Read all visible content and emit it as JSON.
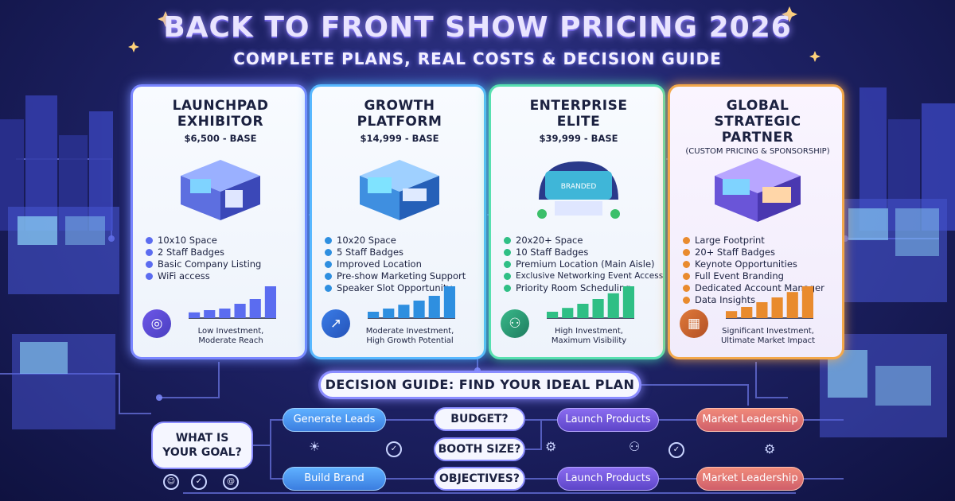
{
  "header": {
    "title": "BACK TO FRONT SHOW PRICING 2026",
    "subtitle": "COMPLETE PLANS, REAL COSTS & DECISION GUIDE"
  },
  "plans": [
    {
      "title_line1": "LAUNCHPAD",
      "title_line2": "EXHIBITOR",
      "price": "$6,500 - BASE",
      "note": "",
      "features": [
        "10x10 Space",
        "2 Staff Badges",
        "Basic Company Listing",
        "WiFi access"
      ],
      "icon": "target-icon",
      "reach_line1": "Low Investment,",
      "reach_line2": "Moderate Reach",
      "bar_levels": [
        0.18,
        0.25,
        0.3,
        0.45,
        0.6,
        1.0
      ],
      "accent": "#5b6cf0"
    },
    {
      "title_line1": "GROWTH",
      "title_line2": "PLATFORM",
      "price": "$14,999 - BASE",
      "note": "",
      "features": [
        "10x20 Space",
        "5 Staff Badges",
        "Improved Location",
        "Pre-show Marketing Support",
        "Speaker Slot Opportunity"
      ],
      "icon": "growth-chart-icon",
      "reach_line1": "Moderate Investment,",
      "reach_line2": "High Growth Potential",
      "bar_levels": [
        0.2,
        0.3,
        0.42,
        0.55,
        0.7,
        1.0
      ],
      "accent": "#2e8fe0"
    },
    {
      "title_line1": "ENTERPRISE",
      "title_line2": "ELITE",
      "price": "$39,999 - BASE",
      "note": "",
      "features": [
        "20x20+ Space",
        "10 Staff Badges",
        "Premium Location (Main Aisle)",
        "Exclusive Networking Event Access",
        "Priority Room Scheduling"
      ],
      "icon": "network-icon",
      "reach_line1": "High Investment,",
      "reach_line2": "Maximum Visibility",
      "bar_levels": [
        0.2,
        0.32,
        0.45,
        0.6,
        0.78,
        1.0
      ],
      "accent": "#2fbf85"
    },
    {
      "title_line1": "GLOBAL STRATEGIC",
      "title_line2": "PARTNER",
      "price": "",
      "note": "(CUSTOM PRICING & SPONSORSHIP)",
      "features": [
        "Large Footprint",
        "20+ Staff Badges",
        "Keynote Opportunities",
        "Full Event Branding",
        "Dedicated Account Manager",
        "Data Insights"
      ],
      "icon": "analytics-icon",
      "reach_line1": "Significant Investment,",
      "reach_line2": "Ultimate Market Impact",
      "bar_levels": [
        0.22,
        0.35,
        0.5,
        0.65,
        0.82,
        1.0
      ],
      "accent": "#e98b2e"
    }
  ],
  "booth_sign": "BRANDED",
  "decision": {
    "heading": "DECISION GUIDE: FIND YOUR IDEAL PLAN",
    "goal_line1": "WHAT IS",
    "goal_line2": "YOUR GOAL?",
    "goal_generate": "Generate Leads",
    "goal_brand": "Build Brand",
    "q_budget": "BUDGET?",
    "q_booth": "BOOTH SIZE?",
    "q_objectives": "OBJECTIVES?",
    "launch_top": "Launch Products",
    "launch_bottom": "Launch Products",
    "market_top": "Market Leadership",
    "market_bottom": "Market Leadership"
  },
  "colors": {
    "background": "#1e2266",
    "card_border_1": "#7a86ff",
    "card_border_2": "#58b8ff",
    "card_border_3": "#58e0b0",
    "card_border_4": "#f3a84a"
  }
}
